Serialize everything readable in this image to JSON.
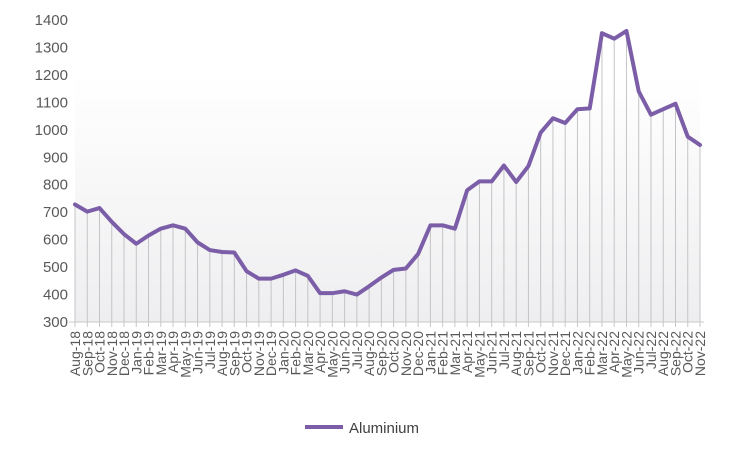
{
  "chart_data": {
    "type": "line",
    "title": "",
    "xlabel": "",
    "ylabel": "",
    "ylim": [
      300,
      1400
    ],
    "yticks": [
      300,
      400,
      500,
      600,
      700,
      800,
      900,
      1000,
      1100,
      1200,
      1300,
      1400
    ],
    "grid": false,
    "drop_lines": true,
    "legend_position": "bottom",
    "line_color": "#7B5EA7",
    "categories": [
      "Aug-18",
      "Sep-18",
      "Oct-18",
      "Nov-18",
      "Dec-18",
      "Jan-19",
      "Feb-19",
      "Mar-19",
      "Apr-19",
      "May-19",
      "Jun-19",
      "Jul-19",
      "Aug-19",
      "Sep-19",
      "Oct-19",
      "Nov-19",
      "Dec-19",
      "Jan-20",
      "Feb-20",
      "Mar-20",
      "Apr-20",
      "May-20",
      "Jun-20",
      "Jul-20",
      "Aug-20",
      "Sep-20",
      "Oct-20",
      "Nov-20",
      "Dec-20",
      "Jan-21",
      "Feb-21",
      "Mar-21",
      "Apr-21",
      "May-21",
      "Jun-21",
      "Jul-21",
      "Aug-21",
      "Sep-21",
      "Oct-21",
      "Nov-21",
      "Dec-21",
      "Jan-22",
      "Feb-22",
      "Mar-22",
      "Apr-22",
      "May-22",
      "Jun-22",
      "Jul-22",
      "Aug-22",
      "Sep-22",
      "Oct-22",
      "Nov-22"
    ],
    "series": [
      {
        "name": "Aluminium",
        "values": [
          728,
          702,
          715,
          665,
          620,
          585,
          615,
          640,
          652,
          640,
          590,
          562,
          555,
          553,
          485,
          458,
          458,
          472,
          488,
          468,
          405,
          405,
          412,
          400,
          430,
          462,
          490,
          495,
          548,
          652,
          652,
          640,
          780,
          812,
          812,
          870,
          810,
          868,
          990,
          1042,
          1025,
          1075,
          1078,
          1352,
          1332,
          1360,
          1140,
          1055,
          1075,
          1095,
          975,
          945
        ]
      }
    ]
  }
}
